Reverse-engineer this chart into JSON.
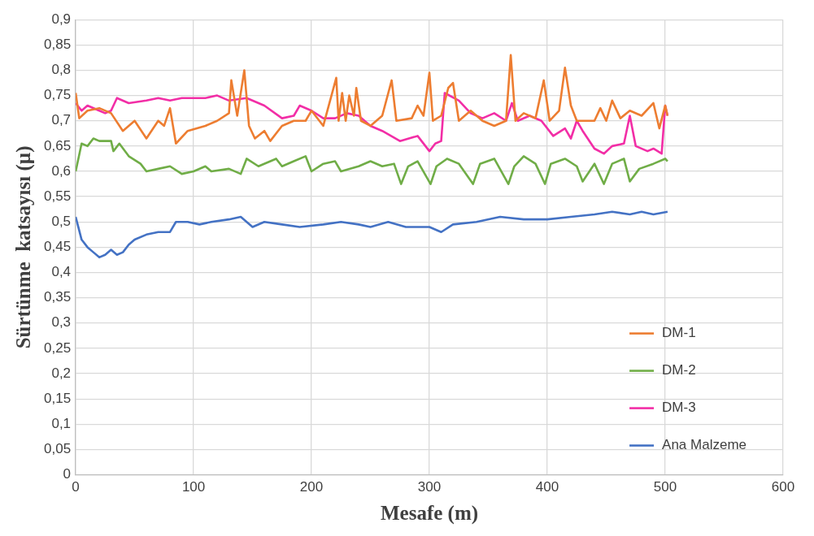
{
  "chart_data": {
    "type": "line",
    "xlabel": "Mesafe (m)",
    "ylabel": "Sürtünme  katsayısı (µ)",
    "xlim": [
      0,
      600
    ],
    "xticks": [
      0,
      100,
      200,
      300,
      400,
      500,
      600
    ],
    "ylim": [
      0,
      0.9
    ],
    "yticks": [
      0,
      {
        "value": 0.05,
        "label": "0,05"
      },
      {
        "value": 0.1,
        "label": "0,1"
      },
      {
        "value": 0.15,
        "label": "0,15"
      },
      {
        "value": 0.2,
        "label": "0,2"
      },
      {
        "value": 0.25,
        "label": "0,25"
      },
      {
        "value": 0.3,
        "label": "0,3"
      },
      {
        "value": 0.35,
        "label": "0,35"
      },
      {
        "value": 0.4,
        "label": "0,4"
      },
      {
        "value": 0.45,
        "label": "0,45"
      },
      {
        "value": 0.5,
        "label": "0,5"
      },
      {
        "value": 0.55,
        "label": "0,55"
      },
      {
        "value": 0.6,
        "label": "0,6"
      },
      {
        "value": 0.65,
        "label": "0,65"
      },
      {
        "value": 0.7,
        "label": "0,7"
      },
      {
        "value": 0.75,
        "label": "0,75"
      },
      {
        "value": 0.8,
        "label": "0,8"
      },
      {
        "value": 0.85,
        "label": "0,85"
      },
      {
        "value": 0.9,
        "label": "0,9"
      }
    ],
    "grid": true,
    "legend": "bottom right",
    "marker": "none",
    "line_style": "solid",
    "series": [
      {
        "name": "DM-1",
        "color": "#ed7d31",
        "x": [
          0,
          3,
          10,
          20,
          30,
          40,
          50,
          60,
          70,
          75,
          80,
          85,
          95,
          110,
          120,
          130,
          132,
          137,
          143,
          147,
          152,
          160,
          165,
          175,
          185,
          195,
          200,
          210,
          221,
          223,
          226,
          229,
          232,
          236,
          238,
          242,
          250,
          260,
          268,
          272,
          285,
          290,
          295,
          300,
          303,
          310,
          316,
          320,
          325,
          335,
          345,
          355,
          365,
          369,
          373,
          380,
          390,
          397,
          402,
          410,
          415,
          420,
          425,
          440,
          445,
          450,
          455,
          462,
          470,
          480,
          490,
          495,
          500,
          502
        ],
        "values": [
          0.755,
          0.705,
          0.72,
          0.725,
          0.715,
          0.68,
          0.7,
          0.665,
          0.7,
          0.69,
          0.725,
          0.655,
          0.68,
          0.69,
          0.7,
          0.715,
          0.78,
          0.71,
          0.8,
          0.69,
          0.665,
          0.68,
          0.66,
          0.69,
          0.7,
          0.7,
          0.72,
          0.69,
          0.785,
          0.7,
          0.755,
          0.7,
          0.75,
          0.71,
          0.765,
          0.7,
          0.69,
          0.71,
          0.78,
          0.7,
          0.705,
          0.73,
          0.71,
          0.795,
          0.7,
          0.71,
          0.765,
          0.775,
          0.7,
          0.72,
          0.7,
          0.69,
          0.7,
          0.83,
          0.7,
          0.715,
          0.705,
          0.78,
          0.7,
          0.72,
          0.805,
          0.73,
          0.7,
          0.7,
          0.725,
          0.7,
          0.74,
          0.705,
          0.72,
          0.71,
          0.735,
          0.685,
          0.73,
          0.71
        ]
      },
      {
        "name": "DM-2",
        "color": "#70ad47",
        "x": [
          0,
          5,
          10,
          15,
          20,
          30,
          32,
          37,
          45,
          55,
          60,
          70,
          80,
          90,
          100,
          110,
          115,
          130,
          140,
          145,
          155,
          170,
          175,
          185,
          195,
          200,
          210,
          220,
          225,
          240,
          250,
          260,
          270,
          276,
          282,
          290,
          301,
          306,
          315,
          325,
          337,
          343,
          355,
          367,
          372,
          380,
          390,
          398,
          403,
          415,
          425,
          430,
          440,
          448,
          455,
          465,
          470,
          478,
          490,
          500,
          502
        ],
        "values": [
          0.6,
          0.655,
          0.65,
          0.665,
          0.66,
          0.66,
          0.64,
          0.655,
          0.63,
          0.615,
          0.6,
          0.605,
          0.61,
          0.595,
          0.6,
          0.61,
          0.6,
          0.605,
          0.595,
          0.625,
          0.61,
          0.625,
          0.61,
          0.62,
          0.63,
          0.6,
          0.615,
          0.62,
          0.6,
          0.61,
          0.62,
          0.61,
          0.615,
          0.575,
          0.61,
          0.62,
          0.575,
          0.61,
          0.625,
          0.615,
          0.575,
          0.615,
          0.625,
          0.575,
          0.61,
          0.63,
          0.615,
          0.575,
          0.615,
          0.625,
          0.61,
          0.58,
          0.615,
          0.575,
          0.615,
          0.625,
          0.58,
          0.605,
          0.615,
          0.625,
          0.62
        ]
      },
      {
        "name": "DM-3",
        "color": "#f22ea6",
        "x": [
          0,
          5,
          10,
          20,
          25,
          30,
          35,
          45,
          60,
          70,
          80,
          90,
          110,
          120,
          130,
          145,
          160,
          175,
          185,
          190,
          200,
          210,
          220,
          230,
          240,
          250,
          260,
          275,
          290,
          300,
          305,
          310,
          313,
          325,
          335,
          345,
          355,
          365,
          370,
          375,
          385,
          395,
          405,
          415,
          420,
          425,
          430,
          440,
          448,
          455,
          465,
          470,
          475,
          485,
          490,
          497,
          500,
          502
        ],
        "values": [
          0.735,
          0.72,
          0.73,
          0.72,
          0.715,
          0.72,
          0.745,
          0.735,
          0.74,
          0.745,
          0.74,
          0.745,
          0.745,
          0.75,
          0.74,
          0.745,
          0.73,
          0.705,
          0.71,
          0.73,
          0.72,
          0.705,
          0.705,
          0.715,
          0.71,
          0.69,
          0.68,
          0.66,
          0.67,
          0.64,
          0.655,
          0.66,
          0.755,
          0.74,
          0.715,
          0.705,
          0.715,
          0.7,
          0.735,
          0.7,
          0.71,
          0.7,
          0.67,
          0.685,
          0.665,
          0.7,
          0.68,
          0.645,
          0.635,
          0.65,
          0.655,
          0.71,
          0.65,
          0.64,
          0.645,
          0.635,
          0.73,
          0.71
        ]
      },
      {
        "name": "Ana Malzeme",
        "color": "#4472c4",
        "x": [
          0,
          5,
          10,
          15,
          20,
          25,
          30,
          35,
          40,
          45,
          50,
          60,
          70,
          80,
          85,
          95,
          105,
          115,
          130,
          140,
          150,
          160,
          175,
          190,
          210,
          225,
          240,
          250,
          265,
          280,
          300,
          310,
          320,
          340,
          360,
          380,
          400,
          420,
          440,
          455,
          470,
          480,
          490,
          502
        ],
        "values": [
          0.51,
          0.465,
          0.45,
          0.44,
          0.43,
          0.435,
          0.445,
          0.435,
          0.44,
          0.455,
          0.465,
          0.475,
          0.48,
          0.48,
          0.5,
          0.5,
          0.495,
          0.5,
          0.505,
          0.51,
          0.49,
          0.5,
          0.495,
          0.49,
          0.495,
          0.5,
          0.495,
          0.49,
          0.5,
          0.49,
          0.49,
          0.48,
          0.495,
          0.5,
          0.51,
          0.505,
          0.505,
          0.51,
          0.515,
          0.52,
          0.515,
          0.52,
          0.515,
          0.52
        ]
      }
    ]
  }
}
